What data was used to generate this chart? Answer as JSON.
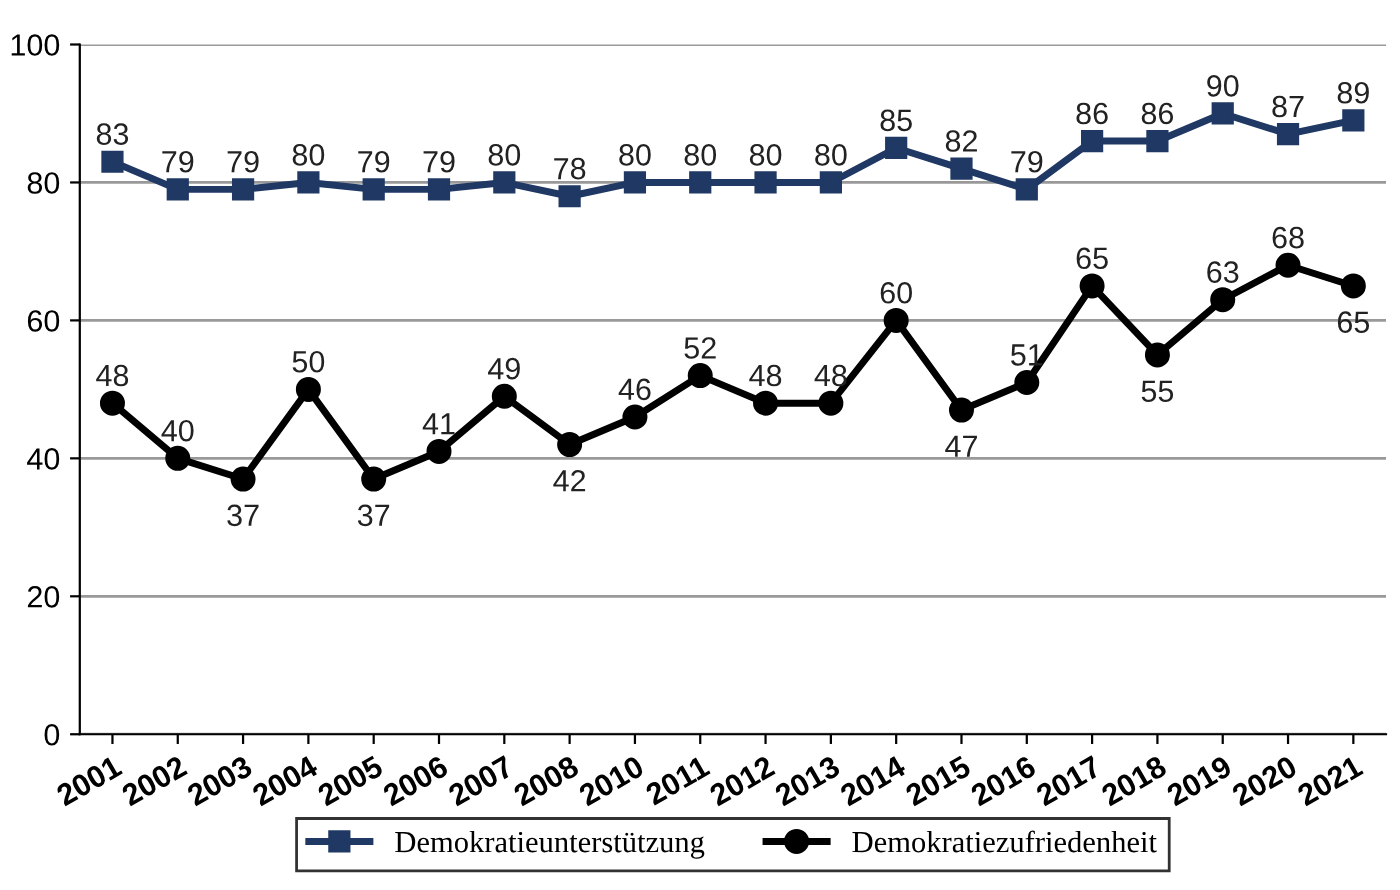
{
  "chart_data": {
    "type": "line",
    "categories": [
      "2001",
      "2002",
      "2003",
      "2004",
      "2005",
      "2006",
      "2007",
      "2008",
      "2010",
      "2011",
      "2012",
      "2013",
      "2014",
      "2015",
      "2016",
      "2017",
      "2018",
      "2019",
      "2020",
      "2021"
    ],
    "series": [
      {
        "name": "Demokratieunterstützung",
        "color": "#1f3864",
        "marker": "square",
        "values": [
          83,
          79,
          79,
          80,
          79,
          79,
          80,
          78,
          80,
          80,
          80,
          80,
          85,
          82,
          79,
          86,
          86,
          90,
          87,
          89
        ]
      },
      {
        "name": "Demokratiezufriedenheit",
        "color": "#000000",
        "marker": "circle",
        "values": [
          48,
          40,
          37,
          50,
          37,
          41,
          49,
          42,
          46,
          52,
          48,
          48,
          60,
          47,
          51,
          65,
          55,
          63,
          68,
          65
        ]
      }
    ],
    "ylim": [
      0,
      100
    ],
    "yticks": [
      0,
      20,
      40,
      60,
      80,
      100
    ],
    "grid": "y",
    "legend": "bottom",
    "data_labels": true,
    "line_style": "solid"
  }
}
